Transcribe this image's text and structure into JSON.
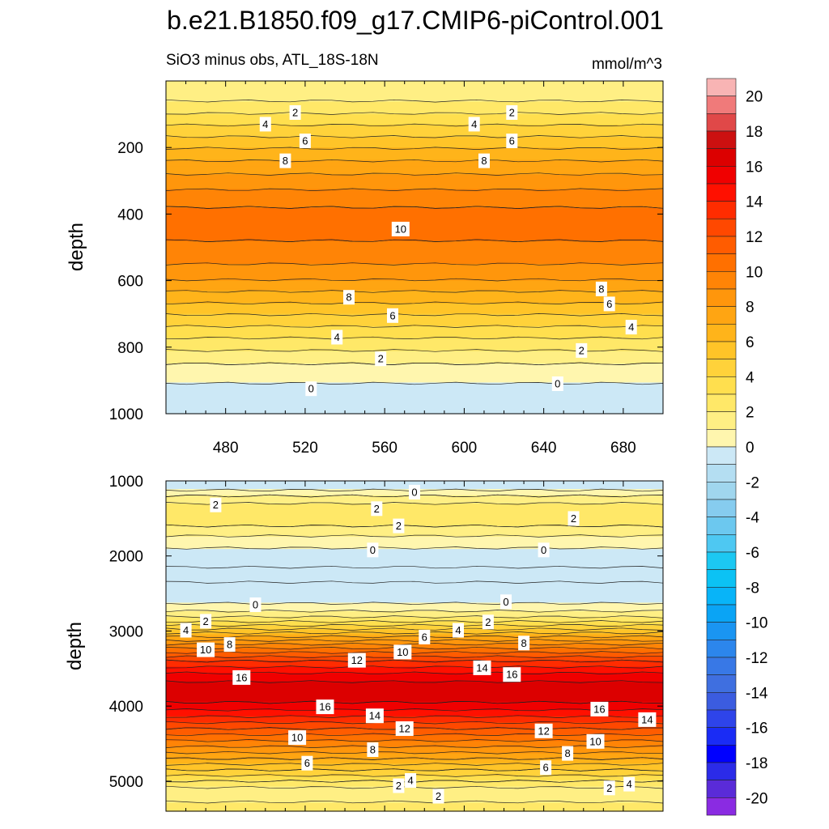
{
  "title": "b.e21.B1850.f09_g17.CMIP6-piControl.001",
  "chart_data": {
    "type": "heatmap",
    "subtitle": "SiO3 minus obs, ATL_18S-18N",
    "units": "mmol/m^3",
    "colorbar": {
      "levels": [
        -20,
        -19,
        -18,
        -17,
        -16,
        -15,
        -14,
        -13,
        -12,
        -11,
        -10,
        -9,
        -8,
        -7,
        -6,
        -5,
        -4,
        -3,
        -2,
        -1,
        0,
        1,
        2,
        3,
        4,
        5,
        6,
        7,
        8,
        9,
        10,
        11,
        12,
        13,
        14,
        15,
        16,
        17,
        18,
        19,
        20
      ],
      "colors": [
        "#8a2be2",
        "#5a2bd8",
        "#2b2be8",
        "#0000ff",
        "#1a2cf5",
        "#2e44ea",
        "#3b5ce0",
        "#3f6fe0",
        "#3878e6",
        "#2c86ec",
        "#1a95f2",
        "#0aa4f5",
        "#08b4f8",
        "#0cc2f4",
        "#1cc8f2",
        "#4ec8f2",
        "#6cc8ef",
        "#86ccef",
        "#a0d6ee",
        "#b4def2",
        "#cce8f6",
        "#fff6ae",
        "#ffef84",
        "#ffe868",
        "#ffdf4e",
        "#ffd23a",
        "#ffc428",
        "#ffb41a",
        "#ffa512",
        "#ff960c",
        "#ff8406",
        "#ff7000",
        "#ff5c00",
        "#ff4800",
        "#ff2c00",
        "#ff1000",
        "#f00000",
        "#dc0000",
        "#cc1010",
        "#e04848",
        "#f07a7a",
        "#f8b4b4"
      ],
      "tick_labels": [
        "20",
        "18",
        "16",
        "14",
        "12",
        "10",
        "8",
        "6",
        "4",
        "2",
        "0",
        "-2",
        "-4",
        "-6",
        "-8",
        "-10",
        "-12",
        "-14",
        "-16",
        "-18",
        "-20"
      ]
    },
    "panels": [
      {
        "name": "upper",
        "ylabel": "depth",
        "x_range": [
          450,
          700
        ],
        "y_range": [
          0,
          1000
        ],
        "x_ticks": [
          "480",
          "520",
          "560",
          "600",
          "640",
          "680"
        ],
        "x_tick_values": [
          480,
          520,
          560,
          600,
          640,
          680
        ],
        "y_ticks": [
          "200",
          "400",
          "600",
          "800",
          "1000"
        ],
        "y_tick_values": [
          200,
          400,
          600,
          800,
          1000
        ],
        "profile": [
          [
            0,
            1.5
          ],
          [
            40,
            1.5
          ],
          [
            80,
            2.5
          ],
          [
            150,
            4.5
          ],
          [
            220,
            6.5
          ],
          [
            300,
            8.5
          ],
          [
            380,
            10.0
          ],
          [
            430,
            10.3
          ],
          [
            480,
            10.0
          ],
          [
            520,
            9.5
          ],
          [
            580,
            8.5
          ],
          [
            650,
            6.5
          ],
          [
            720,
            4.5
          ],
          [
            790,
            2.5
          ],
          [
            850,
            1.0
          ],
          [
            900,
            0.2
          ],
          [
            930,
            -0.5
          ],
          [
            1000,
            -1.0
          ]
        ],
        "contour_labels": [
          {
            "text": "2",
            "x": 515,
            "y": 95
          },
          {
            "text": "2",
            "x": 624,
            "y": 95
          },
          {
            "text": "4",
            "x": 500,
            "y": 130
          },
          {
            "text": "4",
            "x": 605,
            "y": 130
          },
          {
            "text": "6",
            "x": 520,
            "y": 180
          },
          {
            "text": "6",
            "x": 624,
            "y": 180
          },
          {
            "text": "8",
            "x": 510,
            "y": 240
          },
          {
            "text": "8",
            "x": 610,
            "y": 240
          },
          {
            "text": "10",
            "x": 568,
            "y": 445
          },
          {
            "text": "8",
            "x": 542,
            "y": 650
          },
          {
            "text": "8",
            "x": 669,
            "y": 625
          },
          {
            "text": "6",
            "x": 564,
            "y": 705
          },
          {
            "text": "6",
            "x": 673,
            "y": 670
          },
          {
            "text": "4",
            "x": 536,
            "y": 770
          },
          {
            "text": "4",
            "x": 684,
            "y": 740
          },
          {
            "text": "2",
            "x": 558,
            "y": 835
          },
          {
            "text": "2",
            "x": 659,
            "y": 810
          },
          {
            "text": "0",
            "x": 523,
            "y": 925
          },
          {
            "text": "0",
            "x": 647,
            "y": 910
          }
        ]
      },
      {
        "name": "lower",
        "ylabel": "depth",
        "x_range": [
          450,
          700
        ],
        "y_range": [
          1000,
          5400
        ],
        "x_ticks": [],
        "x_tick_values": [
          480,
          520,
          560,
          600,
          640,
          680
        ],
        "y_ticks": [
          "1000",
          "2000",
          "3000",
          "4000",
          "5000"
        ],
        "y_tick_values": [
          1000,
          2000,
          3000,
          4000,
          5000
        ],
        "profile": [
          [
            1000,
            -0.5
          ],
          [
            1100,
            -0.3
          ],
          [
            1200,
            1.0
          ],
          [
            1350,
            2.5
          ],
          [
            1600,
            2.0
          ],
          [
            1800,
            0.5
          ],
          [
            1950,
            -0.3
          ],
          [
            2150,
            -1.0
          ],
          [
            2350,
            -1.0
          ],
          [
            2550,
            -0.5
          ],
          [
            2680,
            0.3
          ],
          [
            2850,
            2.5
          ],
          [
            3000,
            5.5
          ],
          [
            3200,
            9.5
          ],
          [
            3400,
            13.0
          ],
          [
            3600,
            15.5
          ],
          [
            3750,
            16.5
          ],
          [
            3850,
            16.8
          ],
          [
            3950,
            16.0
          ],
          [
            4100,
            14.5
          ],
          [
            4300,
            12.0
          ],
          [
            4500,
            9.5
          ],
          [
            4700,
            7.0
          ],
          [
            4850,
            5.0
          ],
          [
            5000,
            3.0
          ],
          [
            5100,
            1.8
          ],
          [
            5200,
            1.5
          ],
          [
            5400,
            2.8
          ]
        ],
        "contour_labels": [
          {
            "text": "0",
            "x": 575,
            "y": 1150
          },
          {
            "text": "2",
            "x": 475,
            "y": 1320
          },
          {
            "text": "2",
            "x": 556,
            "y": 1370
          },
          {
            "text": "2",
            "x": 567,
            "y": 1600
          },
          {
            "text": "2",
            "x": 655,
            "y": 1500
          },
          {
            "text": "0",
            "x": 554,
            "y": 1920
          },
          {
            "text": "0",
            "x": 640,
            "y": 1920
          },
          {
            "text": "0",
            "x": 495,
            "y": 2650
          },
          {
            "text": "0",
            "x": 621,
            "y": 2610
          },
          {
            "text": "2",
            "x": 470,
            "y": 2870
          },
          {
            "text": "2",
            "x": 612,
            "y": 2880
          },
          {
            "text": "4",
            "x": 460,
            "y": 2990
          },
          {
            "text": "4",
            "x": 597,
            "y": 2990
          },
          {
            "text": "6",
            "x": 580,
            "y": 3080
          },
          {
            "text": "8",
            "x": 482,
            "y": 3180
          },
          {
            "text": "8",
            "x": 630,
            "y": 3160
          },
          {
            "text": "10",
            "x": 470,
            "y": 3250
          },
          {
            "text": "10",
            "x": 569,
            "y": 3280
          },
          {
            "text": "12",
            "x": 546,
            "y": 3390
          },
          {
            "text": "14",
            "x": 609,
            "y": 3490
          },
          {
            "text": "16",
            "x": 488,
            "y": 3620
          },
          {
            "text": "16",
            "x": 624,
            "y": 3580
          },
          {
            "text": "16",
            "x": 530,
            "y": 4010
          },
          {
            "text": "16",
            "x": 668,
            "y": 4040
          },
          {
            "text": "14",
            "x": 555,
            "y": 4130
          },
          {
            "text": "14",
            "x": 692,
            "y": 4180
          },
          {
            "text": "12",
            "x": 570,
            "y": 4300
          },
          {
            "text": "12",
            "x": 640,
            "y": 4330
          },
          {
            "text": "10",
            "x": 516,
            "y": 4420
          },
          {
            "text": "10",
            "x": 666,
            "y": 4470
          },
          {
            "text": "8",
            "x": 554,
            "y": 4580
          },
          {
            "text": "8",
            "x": 652,
            "y": 4630
          },
          {
            "text": "6",
            "x": 521,
            "y": 4760
          },
          {
            "text": "6",
            "x": 641,
            "y": 4820
          },
          {
            "text": "4",
            "x": 573,
            "y": 4990
          },
          {
            "text": "4",
            "x": 683,
            "y": 5040
          },
          {
            "text": "2",
            "x": 567,
            "y": 5060
          },
          {
            "text": "2",
            "x": 587,
            "y": 5200
          },
          {
            "text": "2",
            "x": 673,
            "y": 5090
          }
        ]
      }
    ]
  }
}
